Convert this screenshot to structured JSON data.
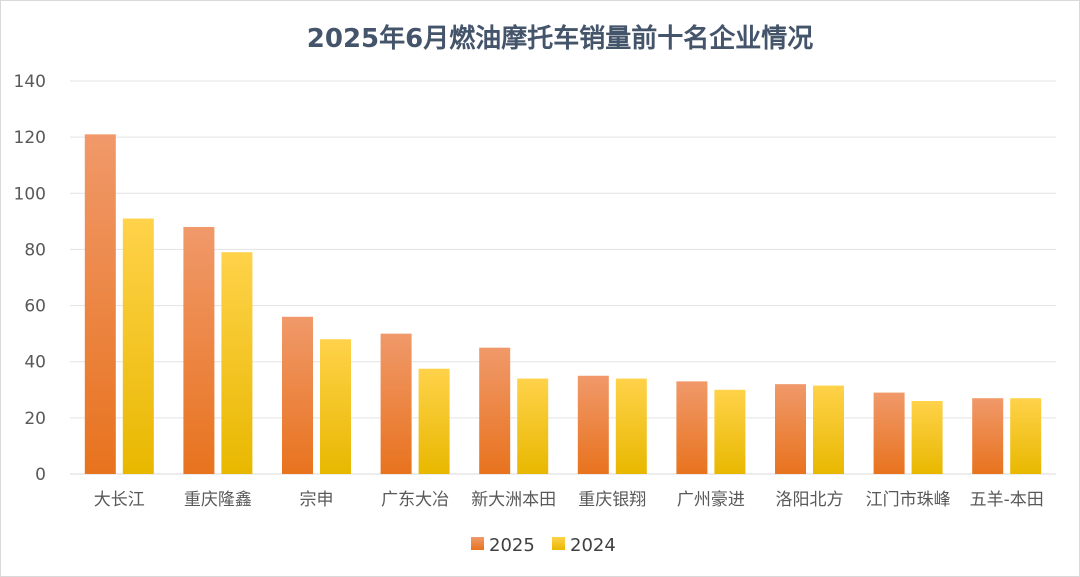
{
  "chart_data": {
    "type": "bar",
    "title": "2025年6月燃油摩托车销量前十名企业情况",
    "categories": [
      "大长江",
      "重庆隆鑫",
      "宗申",
      "广东大冶",
      "新大洲本田",
      "重庆银翔",
      "广州豪进",
      "洛阳北方",
      "江门市珠峰",
      "五羊-本田"
    ],
    "series": [
      {
        "name": "2025",
        "values": [
          121,
          88,
          56,
          50,
          45,
          35,
          33,
          32,
          29,
          27
        ],
        "color_top": "#f0996a",
        "color_bottom": "#e8731e"
      },
      {
        "name": "2024",
        "values": [
          91,
          79,
          48,
          37.5,
          34,
          34,
          30,
          31.5,
          26,
          27
        ],
        "color_top": "#ffd24a",
        "color_bottom": "#e8b800"
      }
    ],
    "ylim": [
      0,
      140
    ],
    "yticks": [
      "0",
      "20",
      "40",
      "60",
      "80",
      "100",
      "120",
      "140"
    ],
    "grid": true,
    "legend": "bottom"
  }
}
